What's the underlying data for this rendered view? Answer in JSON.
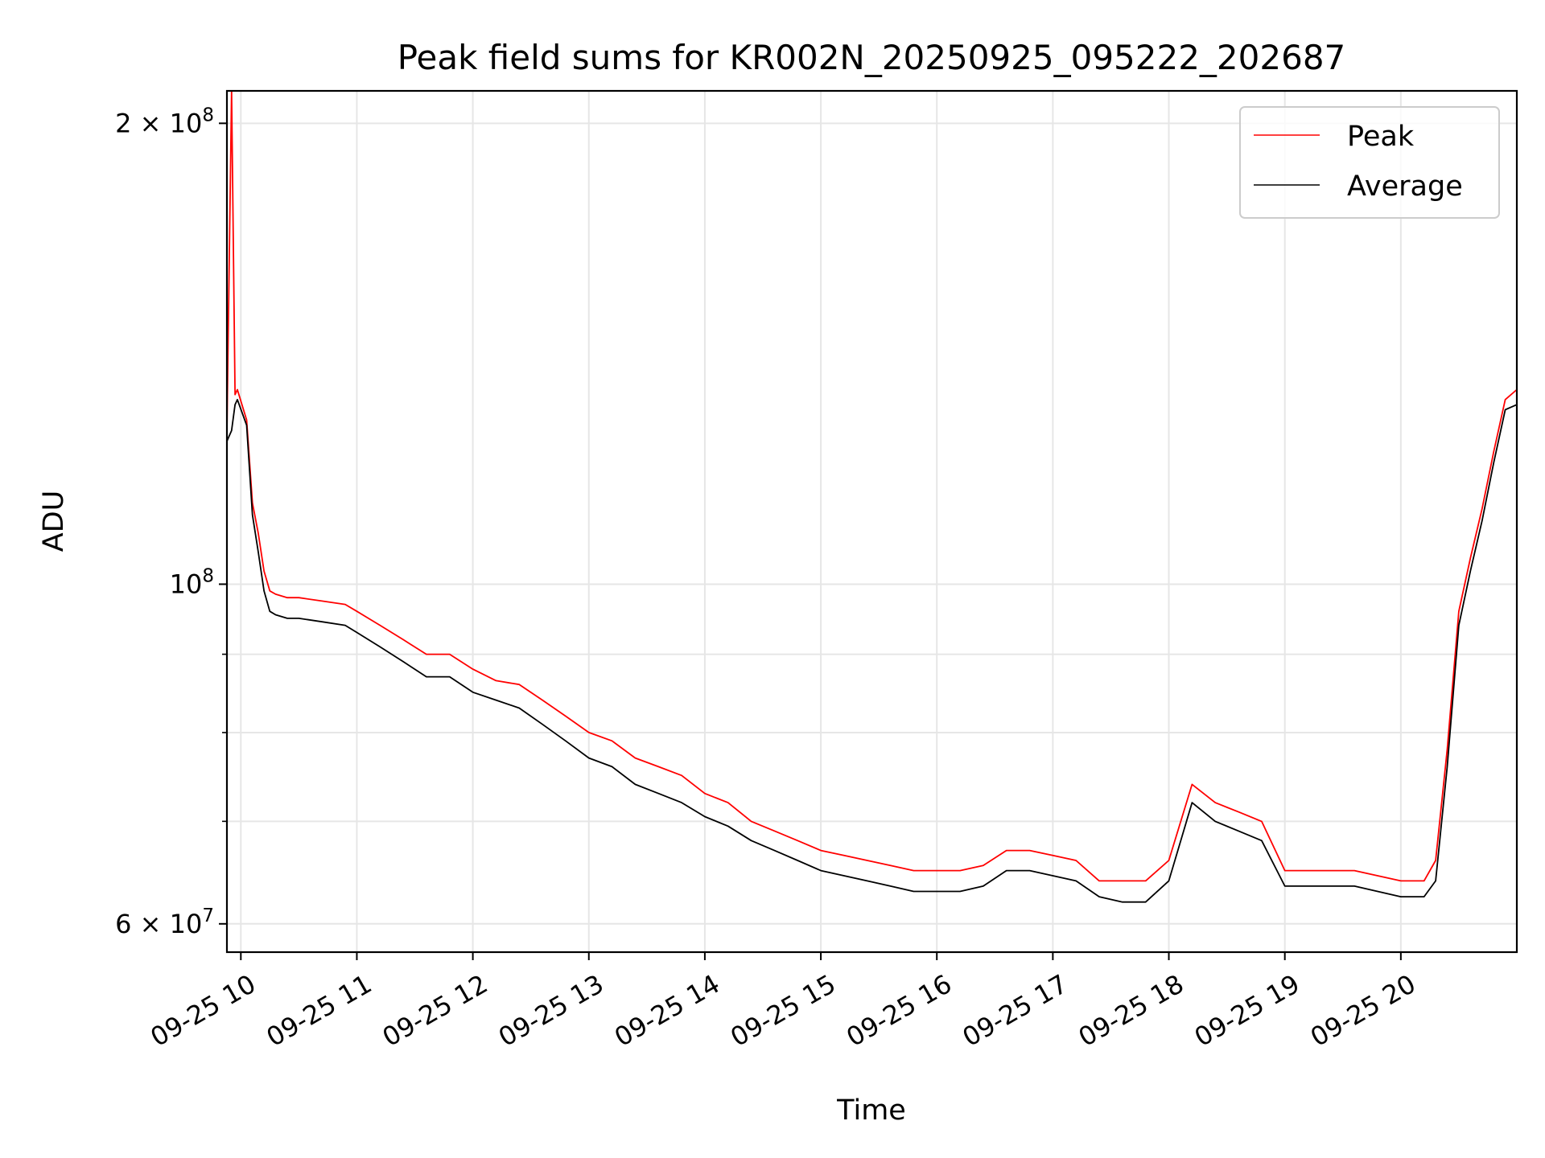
{
  "chart_data": {
    "type": "line",
    "title": "Peak field sums for KR002N_20250925_095222_202687",
    "xlabel": "Time",
    "ylabel": "ADU",
    "y_scale": "log",
    "ylim": [
      57500000,
      210000000
    ],
    "xlim": [
      9.88,
      21.0
    ],
    "x_units": "hour of day, 2025-09-25",
    "x_ticks": [
      {
        "value": 10,
        "label": "09-25 10"
      },
      {
        "value": 11,
        "label": "09-25 11"
      },
      {
        "value": 12,
        "label": "09-25 12"
      },
      {
        "value": 13,
        "label": "09-25 13"
      },
      {
        "value": 14,
        "label": "09-25 14"
      },
      {
        "value": 15,
        "label": "09-25 15"
      },
      {
        "value": 16,
        "label": "09-25 16"
      },
      {
        "value": 17,
        "label": "09-25 17"
      },
      {
        "value": 18,
        "label": "09-25 18"
      },
      {
        "value": 19,
        "label": "09-25 19"
      },
      {
        "value": 20,
        "label": "09-25 20"
      }
    ],
    "y_major_ticks": [
      {
        "value": 60000000,
        "base": "6 × 10",
        "exp": "7"
      },
      {
        "value": 100000000,
        "base": "10",
        "exp": "8"
      },
      {
        "value": 200000000,
        "base": "2 × 10",
        "exp": "8"
      }
    ],
    "y_minor_ticks": [
      70000000,
      80000000,
      90000000
    ],
    "legend": {
      "position": "top-right"
    },
    "series": [
      {
        "name": "Peak",
        "color": "#ff0000",
        "x": [
          9.88,
          9.92,
          9.95,
          9.97,
          10.05,
          10.1,
          10.15,
          10.2,
          10.25,
          10.3,
          10.4,
          10.5,
          10.7,
          10.9,
          11.0,
          11.2,
          11.4,
          11.6,
          11.8,
          12.0,
          12.2,
          12.4,
          12.6,
          12.8,
          13.0,
          13.2,
          13.4,
          13.6,
          13.8,
          14.0,
          14.2,
          14.4,
          14.6,
          14.8,
          15.0,
          15.2,
          15.4,
          15.6,
          15.8,
          16.0,
          16.2,
          16.4,
          16.6,
          16.8,
          17.0,
          17.2,
          17.4,
          17.6,
          17.8,
          18.0,
          18.2,
          18.4,
          18.6,
          18.8,
          19.0,
          19.2,
          19.4,
          19.6,
          19.8,
          20.0,
          20.2,
          20.3,
          20.4,
          20.5,
          20.6,
          20.7,
          20.8,
          20.9,
          21.0
        ],
        "y": [
          126000000,
          210000000,
          133000000,
          134000000,
          128000000,
          113000000,
          108000000,
          102000000,
          99000000,
          98500000,
          98000000,
          98000000,
          97500000,
          97000000,
          96000000,
          94000000,
          92000000,
          90000000,
          90000000,
          88000000,
          86500000,
          86000000,
          84000000,
          82000000,
          80000000,
          79000000,
          77000000,
          76000000,
          75000000,
          73000000,
          72000000,
          70000000,
          69000000,
          68000000,
          67000000,
          66500000,
          66000000,
          65500000,
          65000000,
          65000000,
          65000000,
          65500000,
          67000000,
          67000000,
          66500000,
          66000000,
          64000000,
          64000000,
          64000000,
          66000000,
          74000000,
          72000000,
          71000000,
          70000000,
          65000000,
          65000000,
          65000000,
          65000000,
          64500000,
          64000000,
          64000000,
          66000000,
          78000000,
          96000000,
          104000000,
          112000000,
          122000000,
          132000000,
          134000000
        ]
      },
      {
        "name": "Average",
        "color": "#000000",
        "x": [
          9.88,
          9.92,
          9.95,
          9.97,
          10.05,
          10.1,
          10.15,
          10.2,
          10.25,
          10.3,
          10.4,
          10.5,
          10.7,
          10.9,
          11.0,
          11.2,
          11.4,
          11.6,
          11.8,
          12.0,
          12.2,
          12.4,
          12.6,
          12.8,
          13.0,
          13.2,
          13.4,
          13.6,
          13.8,
          14.0,
          14.2,
          14.4,
          14.6,
          14.8,
          15.0,
          15.2,
          15.4,
          15.6,
          15.8,
          16.0,
          16.2,
          16.4,
          16.6,
          16.8,
          17.0,
          17.2,
          17.4,
          17.6,
          17.8,
          18.0,
          18.2,
          18.4,
          18.6,
          18.8,
          19.0,
          19.2,
          19.4,
          19.6,
          19.8,
          20.0,
          20.2,
          20.3,
          20.4,
          20.5,
          20.6,
          20.7,
          20.8,
          20.9,
          21.0
        ],
        "y": [
          124000000,
          126000000,
          131000000,
          132000000,
          127000000,
          111000000,
          105000000,
          99000000,
          96000000,
          95500000,
          95000000,
          95000000,
          94500000,
          94000000,
          93000000,
          91000000,
          89000000,
          87000000,
          87000000,
          85000000,
          84000000,
          83000000,
          81000000,
          79000000,
          77000000,
          76000000,
          74000000,
          73000000,
          72000000,
          70500000,
          69500000,
          68000000,
          67000000,
          66000000,
          65000000,
          64500000,
          64000000,
          63500000,
          63000000,
          63000000,
          63000000,
          63500000,
          65000000,
          65000000,
          64500000,
          64000000,
          62500000,
          62000000,
          62000000,
          64000000,
          72000000,
          70000000,
          69000000,
          68000000,
          63500000,
          63500000,
          63500000,
          63500000,
          63000000,
          62500000,
          62500000,
          64000000,
          76000000,
          94000000,
          102000000,
          110000000,
          120000000,
          130000000,
          131000000
        ]
      }
    ]
  }
}
